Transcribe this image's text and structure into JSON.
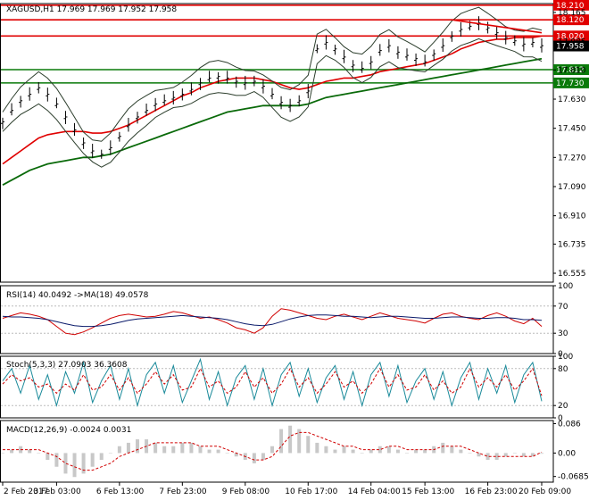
{
  "chart_data": {
    "type": "line",
    "title": "XAGUSD,H1  17.969 17.969 17.952 17.958",
    "main": {
      "ylim": [
        16.5,
        18.22
      ],
      "yticks": [
        "18.165",
        "17.985",
        "17.810",
        "17.630",
        "17.450",
        "17.270",
        "17.090",
        "16.910",
        "16.735",
        "16.555"
      ],
      "ytick_values": [
        18.165,
        17.985,
        17.81,
        17.63,
        17.45,
        17.27,
        17.09,
        16.91,
        16.735,
        16.555
      ],
      "levels": [
        {
          "label": "18.210",
          "value": 18.21,
          "color": "#e00000"
        },
        {
          "label": "18.120",
          "value": 18.12,
          "color": "#e00000"
        },
        {
          "label": "18.020",
          "value": 18.02,
          "color": "#e00000"
        },
        {
          "label": "17.812",
          "value": 17.812,
          "color": "#0a7a0a"
        },
        {
          "label": "17.730",
          "value": 17.73,
          "color": "#0a7a0a"
        }
      ],
      "current": {
        "label": "17.958",
        "value": 17.958
      },
      "price": [
        17.49,
        17.56,
        17.62,
        17.66,
        17.7,
        17.66,
        17.6,
        17.52,
        17.44,
        17.36,
        17.31,
        17.29,
        17.33,
        17.4,
        17.47,
        17.52,
        17.56,
        17.6,
        17.62,
        17.64,
        17.66,
        17.69,
        17.73,
        17.76,
        17.77,
        17.76,
        17.74,
        17.73,
        17.74,
        17.71,
        17.66,
        17.61,
        17.59,
        17.62,
        17.68,
        17.94,
        17.98,
        17.94,
        17.89,
        17.84,
        17.82,
        17.86,
        17.93,
        17.96,
        17.92,
        17.9,
        17.88,
        17.86,
        17.91,
        17.96,
        18.02,
        18.06,
        18.08,
        18.1,
        18.07,
        18.04,
        18.01,
        17.99,
        17.97,
        17.98,
        17.96
      ],
      "sma_red": [
        17.23,
        17.27,
        17.31,
        17.35,
        17.39,
        17.41,
        17.42,
        17.43,
        17.43,
        17.43,
        17.42,
        17.42,
        17.43,
        17.45,
        17.47,
        17.5,
        17.53,
        17.56,
        17.59,
        17.62,
        17.65,
        17.67,
        17.7,
        17.72,
        17.74,
        17.75,
        17.76,
        17.76,
        17.76,
        17.75,
        17.74,
        17.72,
        17.7,
        17.69,
        17.7,
        17.72,
        17.74,
        17.75,
        17.76,
        17.76,
        17.77,
        17.78,
        17.8,
        17.81,
        17.82,
        17.83,
        17.84,
        17.85,
        17.87,
        17.89,
        17.91,
        17.94,
        17.96,
        17.98,
        17.99,
        18.0,
        18.0,
        18.01,
        18.01,
        18.01,
        18.02
      ],
      "sma_green": [
        17.1,
        17.13,
        17.16,
        17.19,
        17.21,
        17.23,
        17.24,
        17.25,
        17.26,
        17.27,
        17.27,
        17.28,
        17.29,
        17.31,
        17.33,
        17.35,
        17.37,
        17.39,
        17.41,
        17.43,
        17.45,
        17.47,
        17.49,
        17.51,
        17.53,
        17.55,
        17.56,
        17.57,
        17.58,
        17.59,
        17.59,
        17.59,
        17.59,
        17.59,
        17.6,
        17.62,
        17.64,
        17.65,
        17.66,
        17.67,
        17.68,
        17.69,
        17.7,
        17.71,
        17.72,
        17.73,
        17.74,
        17.75,
        17.76,
        17.77,
        17.78,
        17.79,
        17.8,
        17.81,
        17.82,
        17.83,
        17.84,
        17.85,
        17.86,
        17.87,
        17.88
      ],
      "trend": {
        "from": [
          50,
          18.12
        ],
        "to": [
          60,
          18.04
        ]
      }
    },
    "rsi": {
      "label": "RSI(14) 40.0492  ->MA(18) 49.0578",
      "ylim": [
        0,
        100
      ],
      "yticks": [
        "100",
        "70",
        "30",
        "0"
      ],
      "ytick_values": [
        100,
        70,
        30,
        0
      ],
      "rsi": [
        52,
        56,
        60,
        58,
        55,
        50,
        40,
        30,
        28,
        32,
        38,
        45,
        52,
        56,
        58,
        56,
        54,
        55,
        58,
        62,
        60,
        56,
        52,
        54,
        50,
        45,
        38,
        35,
        30,
        38,
        55,
        66,
        64,
        60,
        56,
        52,
        50,
        55,
        58,
        54,
        50,
        55,
        60,
        56,
        52,
        50,
        48,
        45,
        52,
        58,
        60,
        55,
        52,
        50,
        56,
        60,
        55,
        48,
        44,
        52,
        40
      ],
      "ma": [
        55,
        54,
        54,
        53,
        52,
        50,
        47,
        44,
        41,
        40,
        40,
        41,
        43,
        46,
        49,
        51,
        52,
        53,
        54,
        55,
        56,
        55,
        54,
        53,
        52,
        50,
        47,
        44,
        42,
        41,
        43,
        47,
        51,
        54,
        56,
        57,
        57,
        56,
        55,
        55,
        54,
        53,
        54,
        55,
        55,
        54,
        53,
        52,
        52,
        53,
        54,
        54,
        53,
        52,
        52,
        53,
        53,
        52,
        50,
        50,
        49
      ]
    },
    "stoch": {
      "label": "Stoch(5,3,3) 27.0903 36.3608",
      "ylim": [
        0,
        100
      ],
      "yticks": [
        "100",
        "80",
        "20",
        "0"
      ],
      "ytick_values": [
        100,
        80,
        20,
        0
      ],
      "k": [
        60,
        80,
        40,
        85,
        30,
        70,
        20,
        75,
        40,
        90,
        25,
        60,
        85,
        30,
        80,
        20,
        70,
        90,
        40,
        85,
        25,
        60,
        95,
        30,
        75,
        20,
        65,
        85,
        30,
        80,
        20,
        70,
        90,
        35,
        80,
        25,
        65,
        85,
        30,
        75,
        20,
        70,
        90,
        35,
        85,
        25,
        60,
        80,
        30,
        75,
        20,
        65,
        90,
        30,
        80,
        40,
        85,
        25,
        70,
        90,
        27
      ],
      "d": [
        55,
        70,
        60,
        65,
        50,
        55,
        40,
        55,
        45,
        70,
        45,
        50,
        70,
        45,
        65,
        40,
        55,
        75,
        55,
        70,
        45,
        50,
        80,
        50,
        60,
        40,
        50,
        75,
        50,
        65,
        40,
        55,
        80,
        50,
        65,
        40,
        55,
        75,
        50,
        60,
        40,
        55,
        80,
        50,
        70,
        45,
        50,
        70,
        45,
        60,
        40,
        50,
        80,
        50,
        65,
        50,
        70,
        45,
        60,
        80,
        36
      ]
    },
    "macd": {
      "label": "MACD(12,26,9) -0.0024 0.0031",
      "ylim": [
        -0.085,
        0.095
      ],
      "yticks": [
        "0.086",
        "0.00",
        "-0.0685"
      ],
      "ytick_values": [
        0.086,
        0,
        -0.0685
      ],
      "hist": [
        0.0,
        0.01,
        0.02,
        0.01,
        0.0,
        -0.02,
        -0.04,
        -0.06,
        -0.07,
        -0.06,
        -0.04,
        -0.02,
        0.0,
        0.02,
        0.03,
        0.04,
        0.04,
        0.03,
        0.02,
        0.02,
        0.03,
        0.03,
        0.02,
        0.01,
        0.01,
        0.0,
        -0.01,
        -0.02,
        -0.03,
        -0.02,
        0.02,
        0.07,
        0.08,
        0.07,
        0.05,
        0.03,
        0.02,
        0.01,
        0.02,
        0.01,
        0.0,
        0.01,
        0.02,
        0.02,
        0.01,
        0.0,
        0.01,
        0.01,
        0.02,
        0.03,
        0.02,
        0.01,
        0.0,
        -0.01,
        -0.02,
        -0.02,
        -0.01,
        0.0,
        -0.01,
        -0.01,
        -0.002
      ],
      "signal": [
        0.01,
        0.01,
        0.01,
        0.01,
        0.01,
        0.0,
        -0.01,
        -0.03,
        -0.04,
        -0.05,
        -0.05,
        -0.04,
        -0.03,
        -0.01,
        0.0,
        0.01,
        0.02,
        0.03,
        0.03,
        0.03,
        0.03,
        0.03,
        0.02,
        0.02,
        0.02,
        0.01,
        0.0,
        -0.01,
        -0.02,
        -0.02,
        -0.01,
        0.02,
        0.05,
        0.06,
        0.06,
        0.05,
        0.04,
        0.03,
        0.02,
        0.02,
        0.01,
        0.01,
        0.01,
        0.02,
        0.02,
        0.01,
        0.01,
        0.01,
        0.01,
        0.02,
        0.02,
        0.02,
        0.01,
        0.0,
        -0.01,
        -0.01,
        -0.01,
        -0.01,
        -0.01,
        -0.01,
        0.003
      ]
    },
    "x_labels": [
      "2 Feb 2017",
      "3 Feb 03:00",
      "6 Feb 13:00",
      "7 Feb 23:00",
      "9 Feb 08:00",
      "10 Feb 17:00",
      "14 Feb 04:00",
      "15 Feb 13:00",
      "16 Feb 23:00",
      "20 Feb 09:00"
    ],
    "x_label_index": [
      0,
      6,
      13,
      20,
      27,
      34,
      41,
      47,
      54,
      60
    ]
  }
}
